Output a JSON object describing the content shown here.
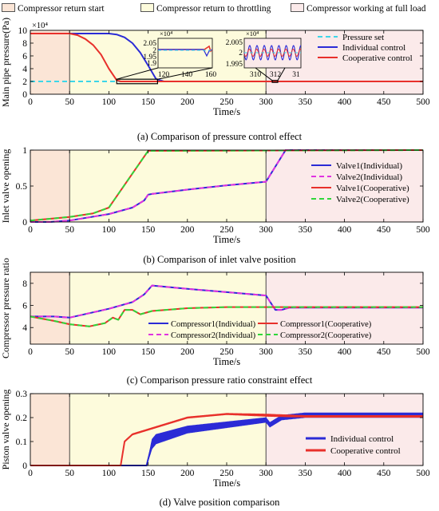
{
  "phase_legend": [
    {
      "label": "Compressor return start",
      "color": "#fbe5d6"
    },
    {
      "label": "Compressor return to throttling",
      "color": "#fdfbdc"
    },
    {
      "label": "Compressor working at full load",
      "color": "#fbeaea"
    }
  ],
  "phase_bounds": [
    0,
    50,
    300,
    500
  ],
  "captions": {
    "a": "(a) Comparison of pressure control effect",
    "b": "(b) Comparison of inlet valve position",
    "c": "(c) Comparison pressure ratio constraint effect",
    "d": "(d) Valve position comparison"
  },
  "chart_data": [
    {
      "id": "a",
      "type": "line",
      "xlabel": "Time/s",
      "ylabel": "Main pipe pressure(Pa)",
      "xlim": [
        0,
        500
      ],
      "ylim": [
        0,
        100000
      ],
      "y_exponent_label": "×10⁴",
      "y_scale": 10000,
      "xticks": [
        0,
        50,
        100,
        150,
        200,
        250,
        300,
        350,
        400,
        450,
        500
      ],
      "yticks": [
        0,
        2,
        4,
        6,
        8,
        10
      ],
      "legend": {
        "position": "right",
        "entries": [
          "Pressure set",
          "Individual control",
          "Cooperative control"
        ]
      },
      "series": [
        {
          "name": "Pressure set",
          "color": "#3dd6e8",
          "dash": "6,4",
          "x": [
            0,
            500
          ],
          "y": [
            20000,
            20000
          ]
        },
        {
          "name": "Individual control",
          "color": "#2b2bd6",
          "x": [
            0,
            100,
            110,
            120,
            130,
            140,
            150,
            160,
            170,
            500
          ],
          "y": [
            95000,
            95000,
            93500,
            89000,
            80000,
            65000,
            45000,
            24000,
            20000,
            20000
          ]
        },
        {
          "name": "Cooperative control",
          "color": "#e8302b",
          "x": [
            0,
            50,
            60,
            70,
            80,
            90,
            100,
            110,
            115,
            500
          ],
          "y": [
            95000,
            95000,
            92500,
            86500,
            77000,
            62000,
            40000,
            22000,
            20000,
            20000
          ]
        }
      ],
      "insets": [
        {
          "xticks": [
            120,
            140,
            160
          ],
          "yticks": [
            "2.05",
            "2",
            "1.95",
            "1.9"
          ],
          "exp": "×10⁴"
        },
        {
          "xticks": [
            310,
            312,
            314
          ],
          "tick_labels": [
            "310",
            "312",
            "31"
          ],
          "yticks": [
            "2.005",
            "2",
            "1.995"
          ],
          "exp": "×10⁴"
        }
      ]
    },
    {
      "id": "b",
      "type": "line",
      "xlabel": "Time/s",
      "ylabel": "Inlet valve opening",
      "xlim": [
        0,
        500
      ],
      "ylim": [
        0,
        1
      ],
      "xticks": [
        0,
        50,
        100,
        150,
        200,
        250,
        300,
        350,
        400,
        450,
        500
      ],
      "yticks": [
        0,
        0.5,
        1
      ],
      "legend": {
        "position": "right",
        "entries": [
          "Valve1(Individual)",
          "Valve2(Individual)",
          "Valve1(Cooperative)",
          "Valve2(Cooperative)"
        ]
      },
      "series": [
        {
          "name": "Valve1(Individual)",
          "color": "#2b2bd6",
          "x": [
            0,
            25,
            50,
            100,
            130,
            145,
            150,
            155,
            200,
            250,
            300,
            325,
            500
          ],
          "y": [
            0,
            0,
            0.02,
            0.11,
            0.2,
            0.3,
            0.38,
            0.39,
            0.45,
            0.51,
            0.56,
            1,
            1
          ]
        },
        {
          "name": "Valve2(Individual)",
          "color": "#e033e0",
          "dash": "6,4",
          "x": [
            0,
            25,
            50,
            100,
            130,
            145,
            150,
            155,
            200,
            250,
            300,
            325,
            500
          ],
          "y": [
            0,
            0,
            0.02,
            0.11,
            0.2,
            0.3,
            0.38,
            0.39,
            0.45,
            0.51,
            0.56,
            1,
            1
          ]
        },
        {
          "name": "Valve1(Cooperative)",
          "color": "#e8302b",
          "x": [
            0,
            50,
            80,
            100,
            150,
            500
          ],
          "y": [
            0.02,
            0.07,
            0.12,
            0.2,
            0.99,
            1
          ]
        },
        {
          "name": "Valve2(Cooperative)",
          "color": "#2fd63a",
          "dash": "6,4",
          "x": [
            0,
            50,
            80,
            100,
            150,
            500
          ],
          "y": [
            0.02,
            0.07,
            0.12,
            0.2,
            0.99,
            1
          ]
        }
      ]
    },
    {
      "id": "c",
      "type": "line",
      "xlabel": "Time/s",
      "ylabel": "Compressor pressure ratio",
      "xlim": [
        0,
        500
      ],
      "ylim": [
        2.5,
        9
      ],
      "xticks": [
        0,
        50,
        100,
        150,
        200,
        250,
        300,
        350,
        400,
        450,
        500
      ],
      "yticks": [
        4,
        6,
        8
      ],
      "legend": {
        "position": "bottom",
        "entries": [
          "Compressor1(Individual)",
          "Compressor1(Cooperative)",
          "Compressor2(Individual)",
          "Compressor2(Cooperative)"
        ]
      },
      "series": [
        {
          "name": "Compressor1(Individual)",
          "color": "#2b2bd6",
          "x": [
            0,
            30,
            50,
            100,
            130,
            145,
            155,
            200,
            250,
            300,
            312,
            320,
            330,
            500
          ],
          "y": [
            5,
            5,
            4.9,
            5.7,
            6.3,
            7,
            7.8,
            7.5,
            7.2,
            6.9,
            5.6,
            5.6,
            5.8,
            5.8
          ]
        },
        {
          "name": "Compressor2(Individual)",
          "color": "#e033e0",
          "dash": "6,4",
          "x": [
            0,
            30,
            50,
            100,
            130,
            145,
            155,
            200,
            250,
            300,
            312,
            320,
            330,
            500
          ],
          "y": [
            5,
            5,
            4.9,
            5.7,
            6.3,
            7,
            7.8,
            7.5,
            7.2,
            6.9,
            5.6,
            5.6,
            5.8,
            5.8
          ]
        },
        {
          "name": "Compressor1(Cooperative)",
          "color": "#e8302b",
          "x": [
            0,
            30,
            50,
            75,
            95,
            105,
            112,
            120,
            130,
            140,
            155,
            200,
            250,
            300,
            500
          ],
          "y": [
            5,
            4.6,
            4.3,
            4.1,
            4.4,
            4.9,
            4.7,
            5.6,
            5.6,
            5.2,
            5.5,
            5.75,
            5.85,
            5.85,
            5.85
          ]
        },
        {
          "name": "Compressor2(Cooperative)",
          "color": "#2fd63a",
          "dash": "6,4",
          "x": [
            0,
            30,
            50,
            75,
            95,
            105,
            112,
            120,
            130,
            140,
            155,
            200,
            250,
            300,
            500
          ],
          "y": [
            5,
            4.6,
            4.3,
            4.1,
            4.4,
            4.9,
            4.7,
            5.6,
            5.6,
            5.2,
            5.5,
            5.75,
            5.85,
            5.85,
            5.85
          ]
        }
      ]
    },
    {
      "id": "d",
      "type": "line",
      "xlabel": "Time/s",
      "ylabel": "Piston valve opening",
      "xlim": [
        0,
        500
      ],
      "ylim": [
        0,
        0.3
      ],
      "xticks": [
        0,
        50,
        100,
        150,
        200,
        250,
        300,
        350,
        400,
        450,
        500
      ],
      "yticks": [
        0,
        0.1,
        0.2,
        0.3
      ],
      "legend": {
        "position": "right",
        "entries": [
          "Individual control",
          "Cooperative control"
        ]
      },
      "series": [
        {
          "name": "Individual control",
          "color": "#2b2bd6",
          "x": [
            0,
            148,
            155,
            160,
            200,
            250,
            300,
            305,
            320,
            350,
            500
          ],
          "y": [
            0,
            0,
            0.09,
            0.11,
            0.15,
            0.17,
            0.19,
            0.17,
            0.2,
            0.21,
            0.21
          ],
          "band": [
            0,
            0,
            0.04,
            0.04,
            0.03,
            0.025,
            0.02,
            0.02,
            0.02,
            0.02,
            0.02
          ]
        },
        {
          "name": "Cooperative control",
          "color": "#e8302b",
          "x": [
            0,
            115,
            120,
            130,
            150,
            200,
            250,
            300,
            350,
            500
          ],
          "y": [
            0,
            0,
            0.1,
            0.13,
            0.15,
            0.2,
            0.215,
            0.21,
            0.205,
            0.205
          ],
          "band": [
            0,
            0,
            0.006,
            0.006,
            0.006,
            0.006,
            0.006,
            0.01,
            0.008,
            0.008
          ]
        }
      ]
    }
  ]
}
